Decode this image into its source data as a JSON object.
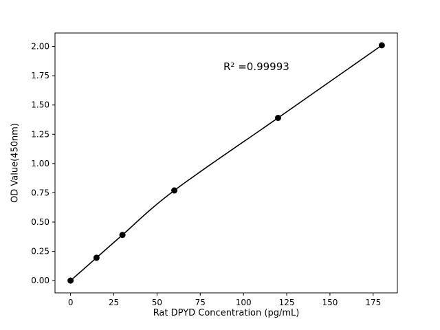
{
  "chart_data": {
    "type": "line",
    "markers": true,
    "title": "",
    "xlabel": "Rat DPYD Concentration (pg/mL)",
    "ylabel": "OD Value(450nm)",
    "annotation": {
      "text": "R² =0.99993"
    },
    "x": [
      0,
      15,
      30,
      60,
      120,
      180
    ],
    "y": [
      0.0,
      0.195,
      0.39,
      0.77,
      1.39,
      2.01
    ],
    "xlim": [
      -9,
      189
    ],
    "ylim": [
      -0.105,
      2.115
    ],
    "xticks": [
      0,
      25,
      50,
      75,
      100,
      125,
      150,
      175
    ],
    "yticks": [
      0,
      0.25,
      0.5,
      0.75,
      1,
      1.25,
      1.5,
      1.75,
      2
    ],
    "grid": false,
    "legend_position": "none",
    "line_color": "#000000",
    "marker_color": "#000000",
    "axis_color": "#000000"
  }
}
